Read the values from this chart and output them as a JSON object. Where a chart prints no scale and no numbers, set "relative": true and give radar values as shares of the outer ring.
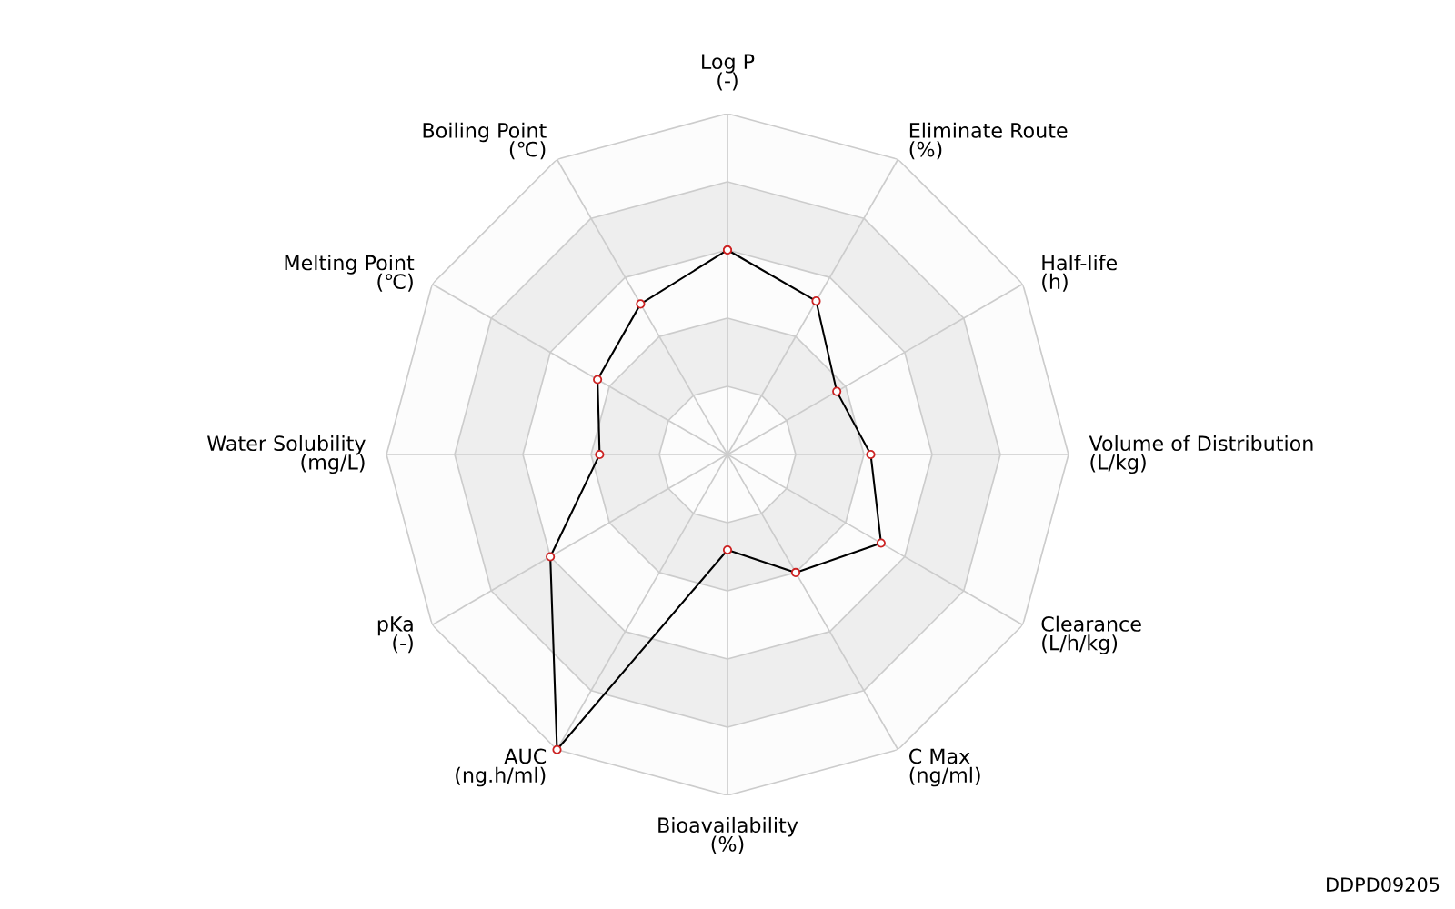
{
  "chart_data": {
    "type": "radar",
    "relative": true,
    "categories": [
      "Log P\n(-)",
      "Eliminate Route\n(%)",
      "Half-life\n(h)",
      "Volume of Distribution\n(L/kg)",
      "Clearance\n(L/h/kg)",
      "C Max\n(ng/ml)",
      "Bioavailability\n(%)",
      "AUC\n(ng.h/ml)",
      "pKa\n(-)",
      "Water Solubility\n(mg/L)",
      "Melting Point\n(℃)",
      "Boiling Point\n(℃)"
    ],
    "series": [
      {
        "color": "#000000",
        "values": [
          0.6,
          0.52,
          0.37,
          0.42,
          0.52,
          0.4,
          0.28,
          1.0,
          0.6,
          0.375,
          0.44,
          0.51
        ]
      }
    ],
    "marker": "circle",
    "grid": true,
    "annotations": [
      "DDPD09205"
    ]
  }
}
